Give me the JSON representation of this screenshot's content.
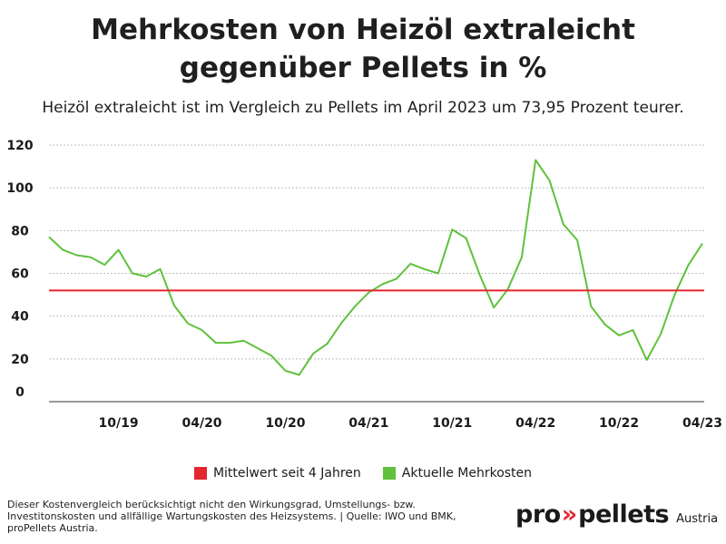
{
  "title_line1": "Mehrkosten von Heizöl extraleicht",
  "title_line2": "gegenüber Pellets in %",
  "subtitle": "Heizöl extraleicht ist im Vergleich zu Pellets im April 2023 um 73,95 Prozent teurer.",
  "legend": [
    {
      "label": "Mittelwert seit 4 Jahren",
      "color": "#e3262f"
    },
    {
      "label": "Aktuelle Mehrkosten",
      "color": "#5fc13c"
    }
  ],
  "footnote": "Dieser Kostenvergleich berücksichtigt nicht den Wirkungsgrad, Umstellungs- bzw. Investitonskosten und allfällige Wartungskosten des Heizsystems. | Quelle: IWO und BMK, proPellets Austria.",
  "logo": {
    "brand_left": "pro",
    "arrows": "»",
    "brand_right": "pellets",
    "suffix": "Austria"
  },
  "chart_data": {
    "type": "line",
    "ylim": [
      0,
      120
    ],
    "yticks": [
      0,
      20,
      40,
      60,
      80,
      100,
      120
    ],
    "grid": true,
    "x": [
      "05/19",
      "06/19",
      "07/19",
      "08/19",
      "09/19",
      "10/19",
      "11/19",
      "12/19",
      "01/20",
      "02/20",
      "03/20",
      "04/20",
      "05/20",
      "06/20",
      "07/20",
      "08/20",
      "09/20",
      "10/20",
      "11/20",
      "12/20",
      "01/21",
      "02/21",
      "03/21",
      "04/21",
      "05/21",
      "06/21",
      "07/21",
      "08/21",
      "09/21",
      "10/21",
      "11/21",
      "12/21",
      "01/22",
      "02/22",
      "03/22",
      "04/22",
      "05/22",
      "06/22",
      "07/22",
      "08/22",
      "09/22",
      "10/22",
      "11/22",
      "12/22",
      "01/23",
      "02/23",
      "03/23",
      "04/23"
    ],
    "xtick_labels": [
      {
        "x": "10/19",
        "label": "10/19"
      },
      {
        "x": "04/20",
        "label": "04/20"
      },
      {
        "x": "10/20",
        "label": "10/20"
      },
      {
        "x": "04/21",
        "label": "04/21"
      },
      {
        "x": "10/21",
        "label": "10/21"
      },
      {
        "x": "04/22",
        "label": "04/22"
      },
      {
        "x": "10/22",
        "label": "10/22"
      },
      {
        "x": "04/23",
        "label": "04/23"
      }
    ],
    "series": [
      {
        "name": "Aktuelle Mehrkosten",
        "color": "#5fc13c",
        "values": [
          77,
          71,
          68.5,
          67.5,
          64,
          71,
          60,
          58.5,
          62,
          45,
          36.5,
          33.5,
          27.5,
          27.5,
          28.5,
          25,
          21.5,
          14.5,
          12.5,
          22.5,
          27,
          36.5,
          44.5,
          51,
          55,
          57.5,
          64.5,
          62,
          60,
          80.5,
          76.5,
          59,
          44,
          52.5,
          67.5,
          113,
          103.5,
          83,
          75.5,
          44.5,
          36,
          31,
          33.5,
          19.5,
          31.5,
          50,
          64,
          73.95
        ]
      },
      {
        "name": "Mittelwert seit 4 Jahren",
        "color": "#e3262f",
        "constant": 52
      }
    ]
  }
}
